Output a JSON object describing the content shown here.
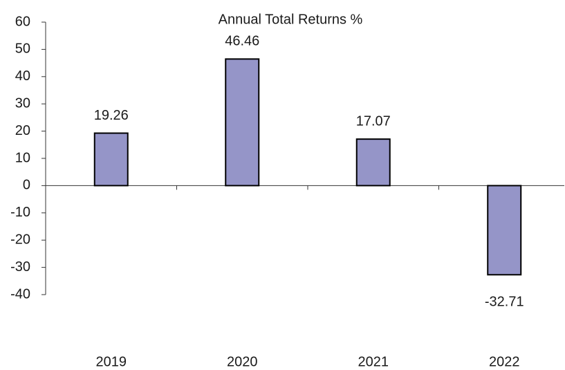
{
  "chart_data": {
    "type": "bar",
    "title": "Annual Total Returns %",
    "categories": [
      "2019",
      "2020",
      "2021",
      "2022"
    ],
    "values": [
      19.26,
      46.46,
      17.07,
      -32.71
    ],
    "color": "#9595c8",
    "ylim": [
      -40,
      60
    ],
    "yticks": [
      -40,
      -30,
      -20,
      -10,
      0,
      10,
      20,
      30,
      40,
      50,
      60
    ],
    "grid": false
  }
}
